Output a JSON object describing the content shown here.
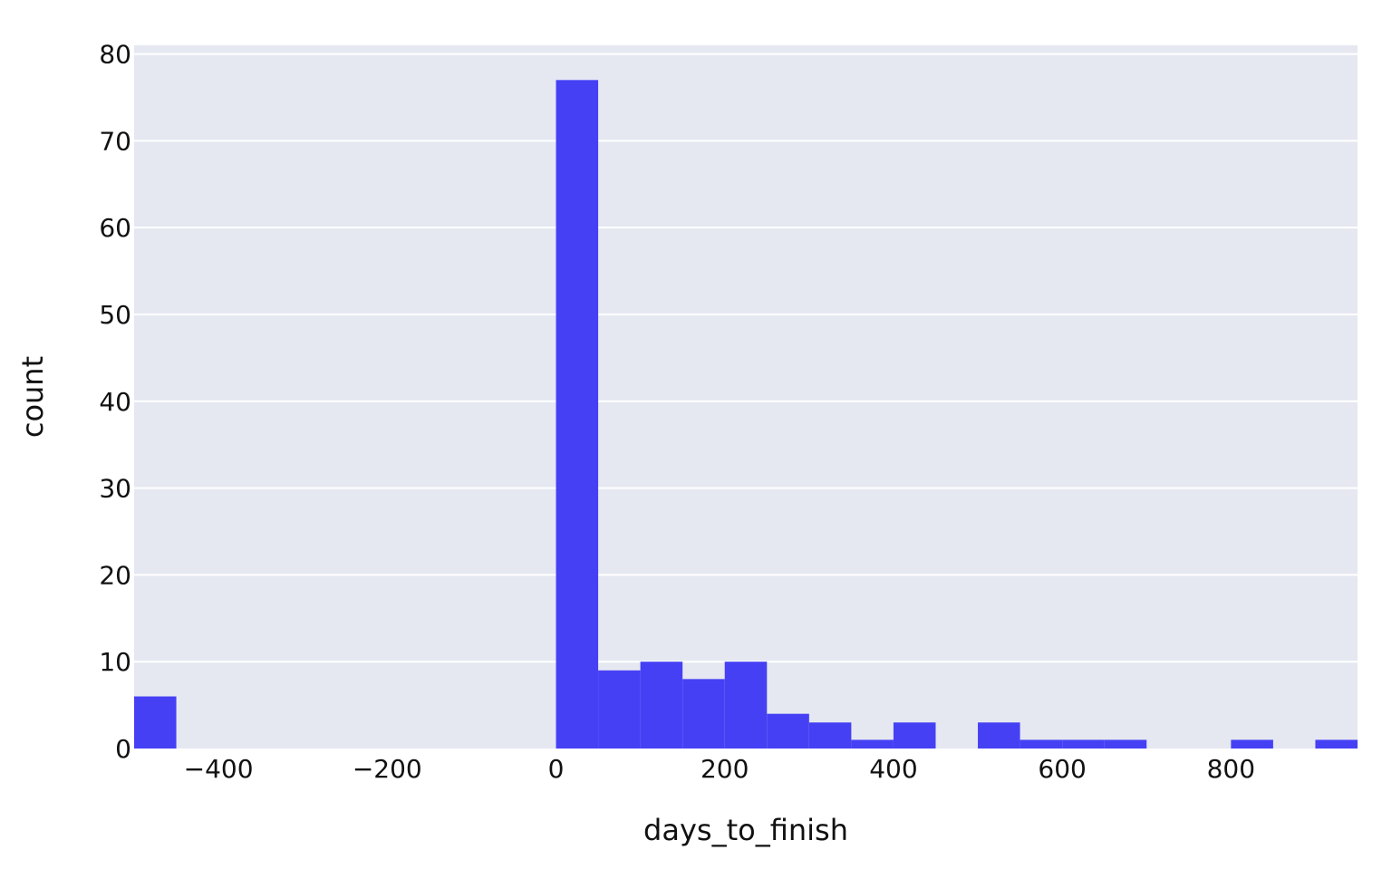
{
  "colors": {
    "plot_background": "#e5e8f1",
    "grid": "#ffffff",
    "bar": "#4640f5",
    "text": "#111111"
  },
  "chart_data": {
    "type": "bar",
    "title": "",
    "xlabel": "days_to_finish",
    "ylabel": "count",
    "xlim": [
      -500,
      950
    ],
    "ylim": [
      0,
      81
    ],
    "xticks": [
      -400,
      -200,
      0,
      200,
      400,
      600,
      800
    ],
    "xtick_labels": [
      "−400",
      "−200",
      "0",
      "200",
      "400",
      "600",
      "800"
    ],
    "yticks": [
      0,
      10,
      20,
      30,
      40,
      50,
      60,
      70,
      80
    ],
    "ytick_labels": [
      "0",
      "10",
      "20",
      "30",
      "40",
      "50",
      "60",
      "70",
      "80"
    ],
    "grid": true,
    "bin_width": 50,
    "bins": [
      {
        "x0": -500,
        "x1": -450,
        "count": 6
      },
      {
        "x0": 0,
        "x1": 50,
        "count": 77
      },
      {
        "x0": 50,
        "x1": 100,
        "count": 9
      },
      {
        "x0": 100,
        "x1": 150,
        "count": 10
      },
      {
        "x0": 150,
        "x1": 200,
        "count": 8
      },
      {
        "x0": 200,
        "x1": 250,
        "count": 10
      },
      {
        "x0": 250,
        "x1": 300,
        "count": 4
      },
      {
        "x0": 300,
        "x1": 350,
        "count": 3
      },
      {
        "x0": 350,
        "x1": 400,
        "count": 1
      },
      {
        "x0": 400,
        "x1": 450,
        "count": 3
      },
      {
        "x0": 500,
        "x1": 550,
        "count": 3
      },
      {
        "x0": 550,
        "x1": 600,
        "count": 1
      },
      {
        "x0": 600,
        "x1": 650,
        "count": 1
      },
      {
        "x0": 650,
        "x1": 700,
        "count": 1
      },
      {
        "x0": 800,
        "x1": 850,
        "count": 1
      },
      {
        "x0": 900,
        "x1": 950,
        "count": 1
      }
    ]
  }
}
